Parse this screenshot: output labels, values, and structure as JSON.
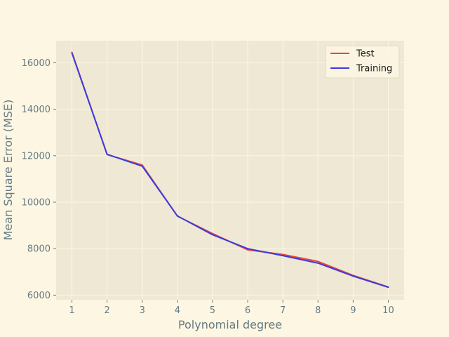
{
  "chart_data": {
    "type": "line",
    "title": "",
    "xlabel": "Polynomial degree",
    "ylabel": "Mean Square Error (MSE)",
    "x": [
      1,
      2,
      3,
      4,
      5,
      6,
      7,
      8,
      9,
      10
    ],
    "x_ticks": [
      "1",
      "2",
      "3",
      "4",
      "5",
      "6",
      "7",
      "8",
      "9",
      "10"
    ],
    "y_ticks": [
      "6000",
      "8000",
      "10000",
      "12000",
      "14000",
      "16000"
    ],
    "xlim": [
      0.55,
      10.45
    ],
    "ylim": [
      5800,
      16950
    ],
    "grid": true,
    "legend_position": "top-right",
    "series": [
      {
        "name": "Test",
        "color": "#e8443a",
        "values": [
          16450,
          12050,
          11600,
          9400,
          8650,
          7950,
          7750,
          7450,
          6850,
          6350
        ]
      },
      {
        "name": "Training",
        "color": "#3b3bdf",
        "values": [
          16420,
          12060,
          11550,
          9410,
          8600,
          8000,
          7700,
          7380,
          6820,
          6340
        ]
      }
    ]
  },
  "colors": {
    "background": "#fdf6e3",
    "plot_background": "#eee8d5",
    "grid": "#fdf6e3",
    "text": "#657b83"
  }
}
